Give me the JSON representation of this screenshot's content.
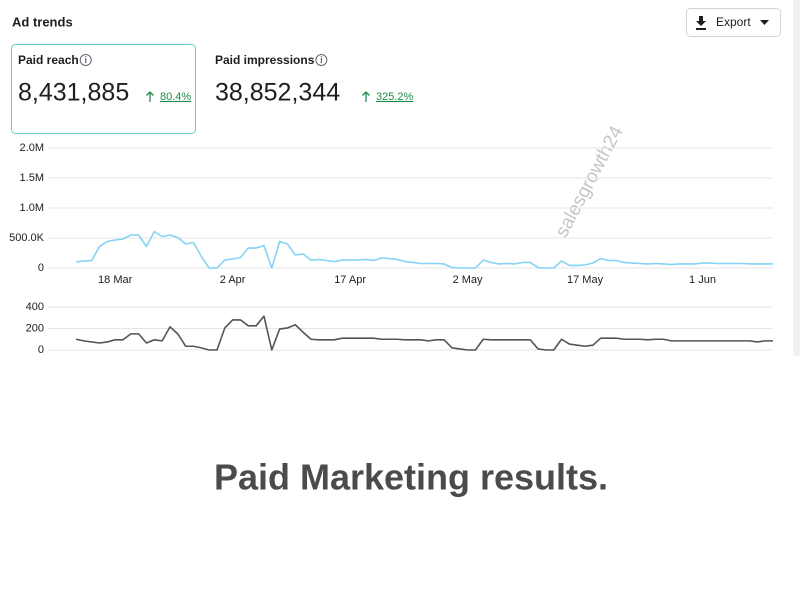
{
  "header": {
    "title": "Ad trends",
    "export_button": "Export"
  },
  "metrics": [
    {
      "label": "Paid reach",
      "value": "8,431,885",
      "change": "80.4%"
    },
    {
      "label": "Paid impressions",
      "value": "38,852,344",
      "change": "325.2%"
    }
  ],
  "chart_data": [
    {
      "type": "line",
      "color": "#86d3f3",
      "grid": true,
      "categories": [
        null,
        null,
        null,
        null,
        null,
        "18 Mar",
        null,
        null,
        null,
        null,
        null,
        null,
        null,
        null,
        null,
        null,
        null,
        null,
        null,
        null,
        "2 Apr",
        null,
        null,
        null,
        null,
        null,
        null,
        null,
        null,
        null,
        null,
        null,
        null,
        null,
        null,
        "17 Apr",
        null,
        null,
        null,
        null,
        null,
        null,
        null,
        null,
        null,
        null,
        null,
        null,
        null,
        null,
        "2 May",
        null,
        null,
        null,
        null,
        null,
        null,
        null,
        null,
        null,
        null,
        null,
        null,
        null,
        null,
        "17 May",
        null,
        null,
        null,
        null,
        null,
        null,
        null,
        null,
        null,
        null,
        null,
        null,
        null,
        null,
        "1 Jun",
        null,
        null,
        null,
        null,
        null,
        null,
        null,
        null,
        null
      ],
      "values": [
        100000,
        117000,
        125000,
        358000,
        442000,
        467000,
        483000,
        550000,
        550000,
        358000,
        608000,
        525000,
        550000,
        508000,
        400000,
        425000,
        192000,
        0,
        0,
        133000,
        150000,
        175000,
        333000,
        333000,
        375000,
        0,
        442000,
        400000,
        217000,
        233000,
        133000,
        142000,
        125000,
        108000,
        133000,
        133000,
        133000,
        142000,
        125000,
        167000,
        158000,
        142000,
        108000,
        92000,
        75000,
        75000,
        75000,
        67000,
        8000,
        0,
        0,
        0,
        133000,
        92000,
        67000,
        75000,
        67000,
        92000,
        92000,
        8000,
        0,
        0,
        117000,
        42000,
        42000,
        50000,
        83000,
        158000,
        125000,
        125000,
        92000,
        83000,
        75000,
        67000,
        75000,
        67000,
        58000,
        67000,
        67000,
        67000,
        83000,
        83000,
        75000,
        75000,
        75000,
        75000,
        67000,
        67000,
        67000,
        67000
      ],
      "ylim": [
        0,
        2000000
      ],
      "yticks": [
        0,
        {
          "value": 500000,
          "label": "500.0K"
        },
        {
          "value": 1000000,
          "label": "1.0M"
        },
        {
          "value": 1500000,
          "label": "1.5M"
        },
        {
          "value": 2000000,
          "label": "2.0M"
        }
      ]
    },
    {
      "type": "line",
      "color": "#555555",
      "grid": true,
      "values": [
        100,
        85,
        75,
        65,
        75,
        95,
        95,
        150,
        150,
        65,
        95,
        85,
        215,
        150,
        35,
        35,
        20,
        0,
        0,
        205,
        280,
        280,
        225,
        225,
        315,
        0,
        195,
        205,
        235,
        165,
        100,
        95,
        95,
        95,
        110,
        110,
        110,
        110,
        110,
        100,
        100,
        100,
        95,
        95,
        95,
        85,
        95,
        95,
        20,
        10,
        0,
        0,
        100,
        95,
        95,
        95,
        95,
        95,
        95,
        10,
        0,
        0,
        100,
        55,
        45,
        35,
        45,
        110,
        110,
        110,
        100,
        100,
        100,
        95,
        100,
        100,
        85,
        85,
        85,
        85,
        85,
        85,
        85,
        85,
        85,
        85,
        85,
        75,
        85,
        85
      ],
      "ylim": [
        0,
        400
      ],
      "yticks": [
        0,
        200,
        400
      ]
    }
  ],
  "watermark": "salesgrowth24",
  "caption": "Paid Marketing results."
}
